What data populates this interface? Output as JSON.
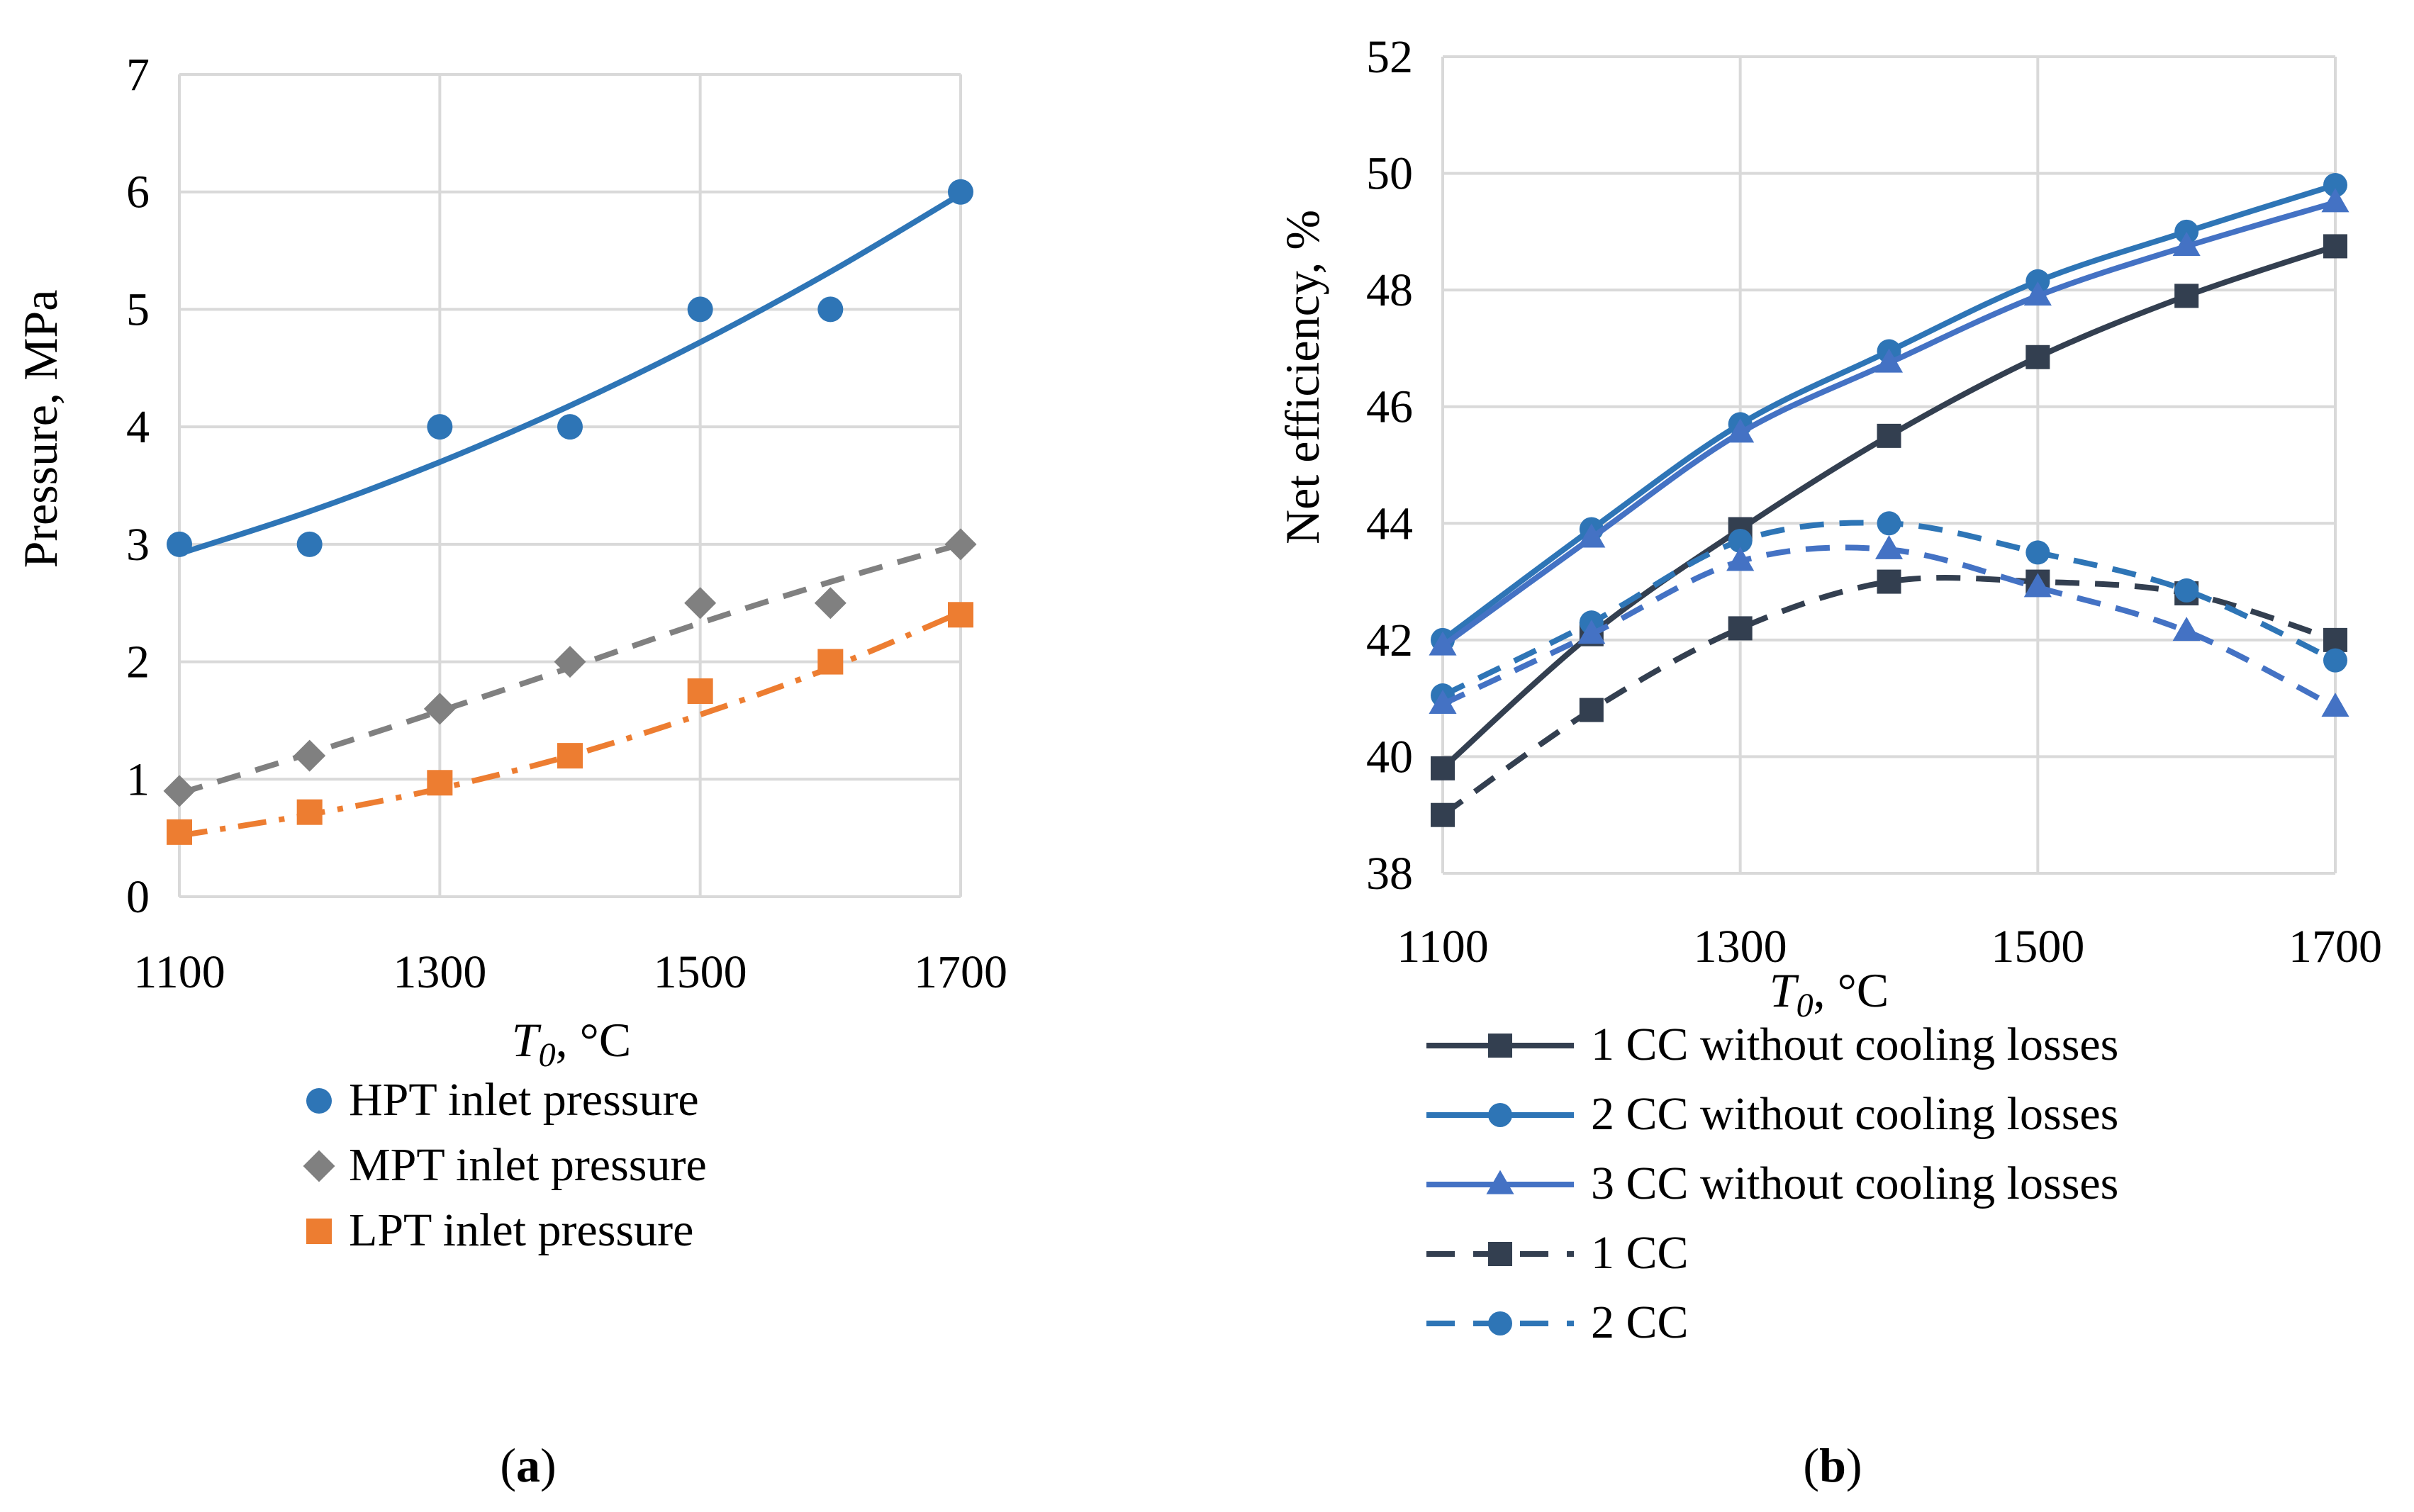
{
  "chart_data": [
    {
      "type": "scatter",
      "caption": "a",
      "xlabel_var": "T",
      "xlabel_sub": "0",
      "xlabel_unit": ", °C",
      "ylabel": "Pressure, MPa",
      "xlim": [
        1100,
        1700
      ],
      "ylim": [
        0,
        7
      ],
      "xticks": [
        "1100",
        "1300",
        "1500",
        "1700"
      ],
      "yticks": [
        "0",
        "1",
        "2",
        "3",
        "4",
        "5",
        "6",
        "7"
      ],
      "grid": true,
      "legend_position": "bottom",
      "series": [
        {
          "name": "HPT inlet pressure",
          "marker": "circle",
          "color": "#2e75b6",
          "x": [
            1100,
            1200,
            1300,
            1400,
            1500,
            1600,
            1700
          ],
          "y": [
            3,
            3,
            4,
            4,
            5,
            5,
            6
          ],
          "trend": {
            "kind": "solid",
            "y": [
              2.92,
              3.28,
              3.7,
              4.18,
              4.72,
              5.32,
              5.98
            ]
          }
        },
        {
          "name": "MPT inlet pressure",
          "marker": "diamond",
          "color": "#808080",
          "x": [
            1100,
            1200,
            1300,
            1400,
            1500,
            1600,
            1700
          ],
          "y": [
            0.9,
            1.2,
            1.6,
            2.0,
            2.5,
            2.5,
            3.0
          ],
          "trend": {
            "kind": "dashed",
            "y": [
              0.88,
              1.22,
              1.58,
              1.95,
              2.33,
              2.68,
              3.0
            ]
          }
        },
        {
          "name": "LPT inlet pressure",
          "marker": "square",
          "color": "#ed7d31",
          "x": [
            1100,
            1200,
            1300,
            1400,
            1500,
            1600,
            1700
          ],
          "y": [
            0.55,
            0.72,
            0.97,
            1.2,
            1.75,
            2.0,
            2.4
          ],
          "trend": {
            "kind": "dashdot",
            "y": [
              0.52,
              0.7,
              0.92,
              1.2,
              1.55,
              1.95,
              2.42
            ]
          }
        }
      ]
    },
    {
      "type": "line",
      "caption": "b",
      "xlabel_var": "T",
      "xlabel_sub": "0",
      "xlabel_unit": ", °C",
      "ylabel": "Net efficiency, %",
      "xlim": [
        1100,
        1700
      ],
      "ylim": [
        38,
        52
      ],
      "xticks": [
        "1100",
        "1300",
        "1500",
        "1700"
      ],
      "yticks": [
        "38",
        "40",
        "42",
        "44",
        "46",
        "48",
        "50",
        "52"
      ],
      "grid": true,
      "legend_position": "bottom",
      "x": [
        1100,
        1200,
        1300,
        1400,
        1500,
        1600,
        1700
      ],
      "series": [
        {
          "name": "1 CC without cooling losses",
          "marker": "square",
          "color": "#333f50",
          "dash": "solid",
          "values": [
            39.8,
            42.1,
            43.9,
            45.5,
            46.85,
            47.9,
            48.75
          ]
        },
        {
          "name": "2 CC without cooling losses",
          "marker": "circle",
          "color": "#2e75b6",
          "dash": "solid",
          "values": [
            42.0,
            43.9,
            45.7,
            46.95,
            48.15,
            49.0,
            49.8
          ]
        },
        {
          "name": "3 CC without cooling losses",
          "marker": "triangle",
          "color": "#4472c4",
          "dash": "solid",
          "values": [
            41.9,
            43.75,
            45.55,
            46.75,
            47.9,
            48.75,
            49.5
          ]
        },
        {
          "name": "1 CC",
          "marker": "square",
          "color": "#333f50",
          "dash": "dashed",
          "values": [
            39.0,
            40.8,
            42.2,
            43.0,
            43.0,
            42.8,
            42.0
          ]
        },
        {
          "name": "2 CC",
          "marker": "circle",
          "color": "#2e75b6",
          "dash": "dashed",
          "values": [
            41.05,
            42.3,
            43.7,
            44.0,
            43.5,
            42.85,
            41.65
          ]
        },
        {
          "name": "3 CC",
          "marker": "triangle",
          "color": "#4472c4",
          "dash": "dashed",
          "values": [
            40.9,
            42.1,
            43.35,
            43.55,
            42.9,
            42.15,
            40.85
          ],
          "in_legend": false
        }
      ]
    }
  ]
}
